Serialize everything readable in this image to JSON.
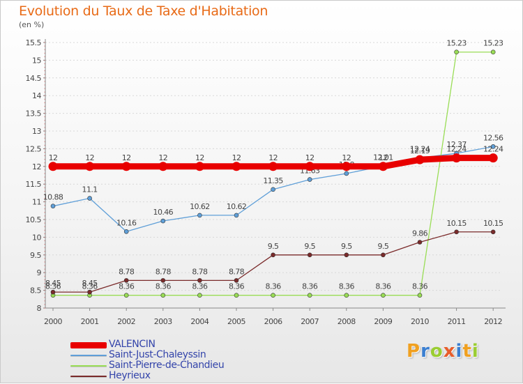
{
  "header": {
    "title": "Evolution du Taux de Taxe d'Habitation",
    "unit": "(en %)"
  },
  "brand": {
    "letters": [
      "P",
      "r",
      "o",
      "x",
      "i",
      "t",
      "i"
    ],
    "colors": [
      "#f0a020",
      "#3b7fd1",
      "#9acd32",
      "#e85d2a",
      "#3b7fd1",
      "#f0a020",
      "#9acd32"
    ]
  },
  "chart_data": {
    "type": "line",
    "title": "Evolution du Taux de Taxe d'Habitation",
    "ylabel": "(en %)",
    "xlabel": "",
    "ylim": [
      8,
      15.5
    ],
    "yticks": [
      "8",
      "8.5",
      "9",
      "9.5",
      "10",
      "10.5",
      "11",
      "11.5",
      "12",
      "12.5",
      "13",
      "13.5",
      "14",
      "14.5",
      "15",
      "15.5"
    ],
    "categories": [
      "2000",
      "2001",
      "2002",
      "2003",
      "2004",
      "2005",
      "2006",
      "2007",
      "2008",
      "2009",
      "2010",
      "2011",
      "2012"
    ],
    "legend_position": "bottom-left",
    "grid": "horizontal-dashed",
    "series": [
      {
        "name": "VALENCIN",
        "color": "#e80000",
        "values": [
          12,
          12,
          12,
          12,
          12,
          12,
          12,
          12,
          12,
          12,
          12.19,
          12.24,
          12.24
        ],
        "labels": [
          "12",
          "12",
          "12",
          "12",
          "12",
          "12",
          "12",
          "12",
          "12",
          "12",
          "12.19",
          "12.24",
          "12.24"
        ]
      },
      {
        "name": "Saint-Just-Chaleyssin",
        "color": "#5f9fd8",
        "values": [
          10.88,
          11.1,
          10.16,
          10.46,
          10.62,
          10.62,
          11.35,
          11.63,
          11.8,
          12.01,
          12.24,
          12.37,
          12.56
        ],
        "labels": [
          "10.88",
          "11.1",
          "10.16",
          "10.46",
          "10.62",
          "10.62",
          "11.35",
          "11.63",
          "11.8",
          "12.01",
          "12.24",
          "12.37",
          "12.56"
        ]
      },
      {
        "name": "Saint-Pierre-de-Chandieu",
        "color": "#99dd55",
        "values": [
          8.36,
          8.36,
          8.36,
          8.36,
          8.36,
          8.36,
          8.36,
          8.36,
          8.36,
          8.36,
          8.36,
          15.23,
          15.23
        ],
        "labels": [
          "8.36",
          "8.36",
          "8.36",
          "8.36",
          "8.36",
          "8.36",
          "8.36",
          "8.36",
          "8.36",
          "8.36",
          "8.36",
          "15.23",
          "15.23"
        ]
      },
      {
        "name": "Heyrieux",
        "color": "#7a2a2a",
        "values": [
          8.45,
          8.45,
          8.78,
          8.78,
          8.78,
          8.78,
          9.5,
          9.5,
          9.5,
          9.5,
          9.86,
          10.15,
          10.15
        ],
        "labels": [
          "8.45",
          "8.45",
          "8.78",
          "8.78",
          "8.78",
          "8.78",
          "9.5",
          "9.5",
          "9.5",
          "9.5",
          "9.86",
          "10.15",
          "10.15"
        ]
      }
    ]
  }
}
